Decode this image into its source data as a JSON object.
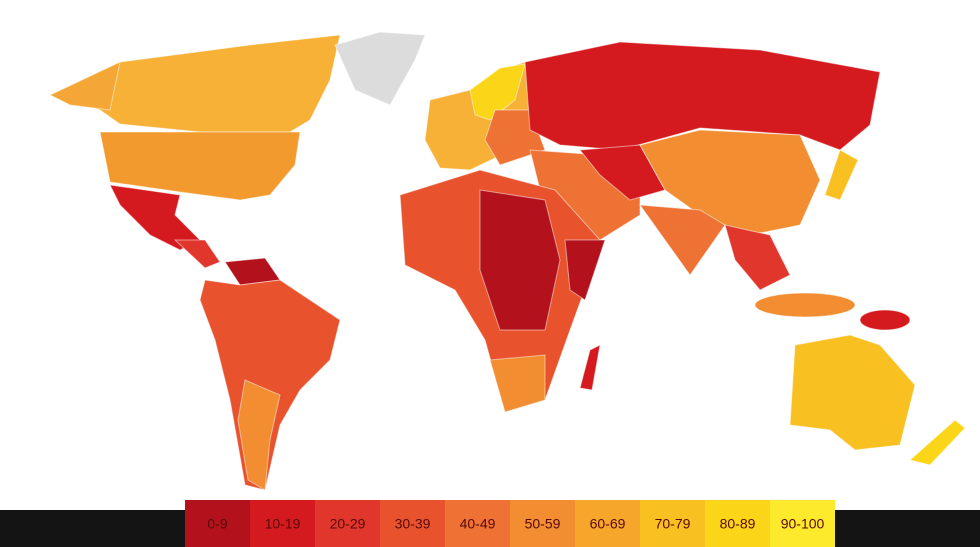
{
  "legend": {
    "items": [
      {
        "label": "0-9",
        "color": "#b3121c"
      },
      {
        "label": "10-19",
        "color": "#d51a1f"
      },
      {
        "label": "20-29",
        "color": "#e0362b"
      },
      {
        "label": "30-39",
        "color": "#e8532e"
      },
      {
        "label": "40-49",
        "color": "#ee7233"
      },
      {
        "label": "50-59",
        "color": "#f28d31"
      },
      {
        "label": "60-69",
        "color": "#f6a72b"
      },
      {
        "label": "70-79",
        "color": "#f9c022"
      },
      {
        "label": "80-89",
        "color": "#fbd618"
      },
      {
        "label": "90-100",
        "color": "#fdea2c"
      }
    ]
  }
}
